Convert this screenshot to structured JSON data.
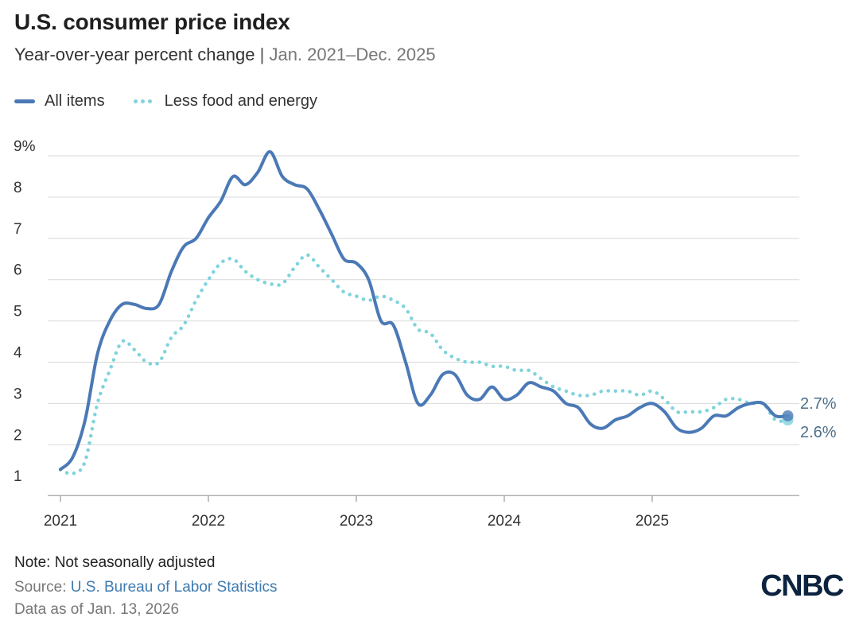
{
  "header": {
    "title": "U.S. consumer price index",
    "subtitle": "Year-over-year percent change",
    "separator": "|",
    "range": "Jan. 2021–Dec. 2025"
  },
  "footer": {
    "note": "Note: Not seasonally adjusted",
    "source_label": "Source:",
    "source_name": "U.S. Bureau of Labor Statistics",
    "data_as_of": "Data as of Jan. 13, 2026",
    "logo": "CNBC"
  },
  "colors": {
    "all_items": "#4b79b6",
    "core": "#7fd3dc",
    "grid": "#d9d9d9",
    "axis": "#999999",
    "end_label": "#4d6f8a",
    "link": "#3f7bb0"
  },
  "chart_data": {
    "type": "line",
    "x_start": "2021-01",
    "x_end": "2025-12",
    "x_tick_labels": [
      "2021",
      "2022",
      "2023",
      "2024",
      "2025"
    ],
    "y_tick_labels": [
      "9%",
      "8",
      "7",
      "6",
      "5",
      "4",
      "3",
      "2",
      "1"
    ],
    "ylim": [
      1,
      9
    ],
    "grid": true,
    "legend_position": "top-left",
    "series": [
      {
        "name": "All items",
        "style": "solid",
        "end_label": "2.7%",
        "values": [
          1.4,
          1.7,
          2.6,
          4.2,
          5.0,
          5.4,
          5.4,
          5.3,
          5.4,
          6.2,
          6.8,
          7.0,
          7.5,
          7.9,
          8.5,
          8.3,
          8.6,
          9.1,
          8.5,
          8.3,
          8.2,
          7.7,
          7.1,
          6.5,
          6.4,
          6.0,
          5.0,
          4.9,
          4.0,
          3.0,
          3.2,
          3.7,
          3.7,
          3.2,
          3.1,
          3.4,
          3.1,
          3.2,
          3.5,
          3.4,
          3.3,
          3.0,
          2.9,
          2.5,
          2.4,
          2.6,
          2.7,
          2.9,
          3.0,
          2.8,
          2.4,
          2.3,
          2.4,
          2.7,
          2.7,
          2.9,
          3.0,
          3.0,
          2.7,
          2.7
        ]
      },
      {
        "name": "Less food and energy",
        "style": "dotted",
        "end_label": "2.6%",
        "values": [
          1.4,
          1.3,
          1.6,
          3.0,
          3.8,
          4.5,
          4.3,
          4.0,
          4.0,
          4.6,
          4.9,
          5.5,
          6.0,
          6.4,
          6.5,
          6.2,
          6.0,
          5.9,
          5.9,
          6.3,
          6.6,
          6.3,
          6.0,
          5.7,
          5.6,
          5.5,
          5.6,
          5.5,
          5.3,
          4.8,
          4.7,
          4.3,
          4.1,
          4.0,
          4.0,
          3.9,
          3.9,
          3.8,
          3.8,
          3.6,
          3.4,
          3.3,
          3.2,
          3.2,
          3.3,
          3.3,
          3.3,
          3.2,
          3.3,
          3.1,
          2.8,
          2.8,
          2.8,
          2.9,
          3.1,
          3.1,
          3.0,
          3.0,
          2.6,
          2.6
        ]
      }
    ]
  }
}
